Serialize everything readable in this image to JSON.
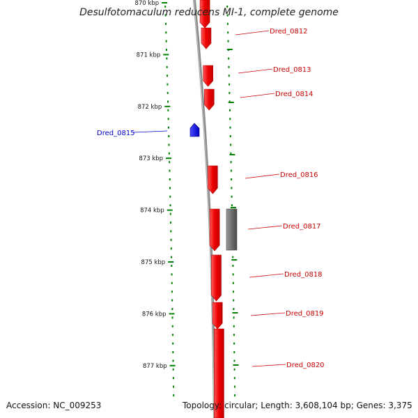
{
  "title": "Desulfotomaculum reducens MI-1, complete genome",
  "accession_label": "Accession:",
  "accession": "NC_009253",
  "topology_label": "Topology:",
  "topology": "circular",
  "length_label": "Length:",
  "length": "3,608,104 bp",
  "genes_label": "Genes:",
  "genes": "3,375",
  "colors": {
    "forward_gene": "#ff0000",
    "reverse_gene": "#0000ff",
    "other_feature": "#666666",
    "backbone": "#808080",
    "tick": "#008000",
    "forward_label": "#cc0000",
    "reverse_label": "#0000cc"
  },
  "scale_ticks": [
    {
      "label": "870 kbp",
      "kbp": 870
    },
    {
      "label": "871 kbp",
      "kbp": 871
    },
    {
      "label": "872 kbp",
      "kbp": 872
    },
    {
      "label": "873 kbp",
      "kbp": 873
    },
    {
      "label": "874 kbp",
      "kbp": 874
    },
    {
      "label": "875 kbp",
      "kbp": 875
    },
    {
      "label": "876 kbp",
      "kbp": 876
    },
    {
      "label": "877 kbp",
      "kbp": 877
    }
  ],
  "genes_list": [
    {
      "name": "Dred_0812",
      "strand": "+"
    },
    {
      "name": "Dred_0813",
      "strand": "+"
    },
    {
      "name": "Dred_0814",
      "strand": "+"
    },
    {
      "name": "Dred_0815",
      "strand": "-"
    },
    {
      "name": "Dred_0816",
      "strand": "+"
    },
    {
      "name": "Dred_0817",
      "strand": "+"
    },
    {
      "name": "Dred_0818",
      "strand": "+"
    },
    {
      "name": "Dred_0819",
      "strand": "+"
    },
    {
      "name": "Dred_0820",
      "strand": "+"
    }
  ]
}
